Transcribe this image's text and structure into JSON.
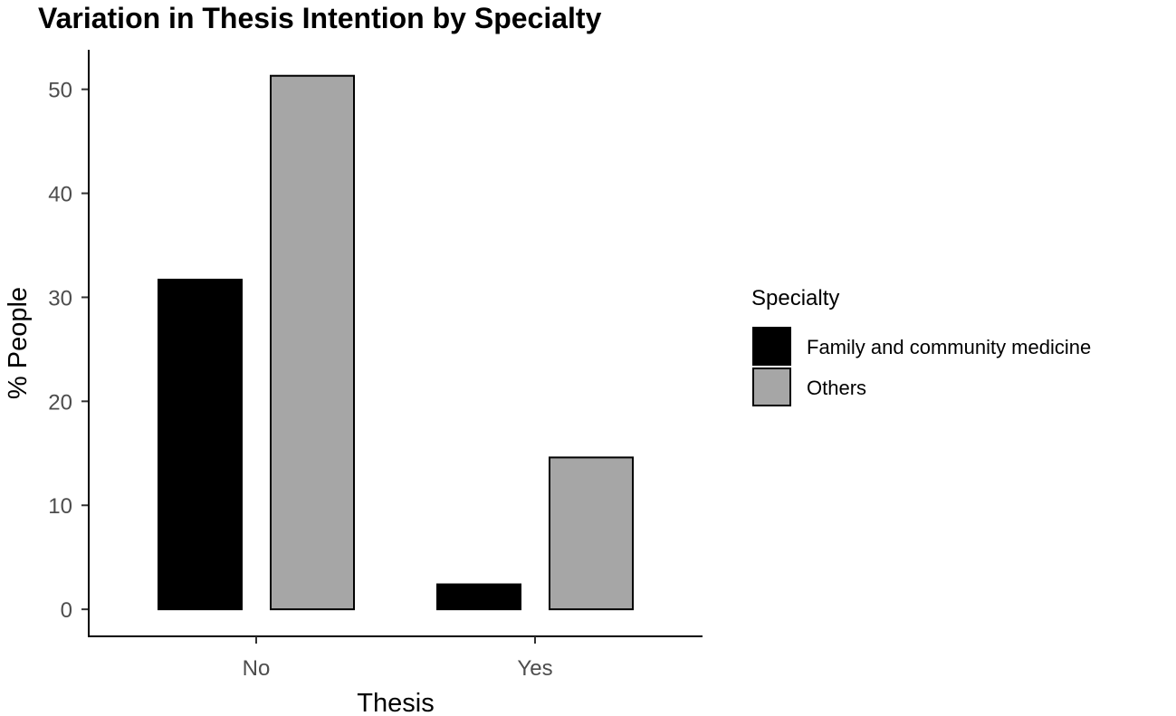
{
  "chart_data": {
    "type": "bar",
    "title": "Variation in Thesis Intention by Specialty",
    "xlabel": "Thesis",
    "ylabel": "% People",
    "categories": [
      "No",
      "Yes"
    ],
    "series": [
      {
        "name": "Family and community medicine",
        "values": [
          31.7,
          2.4
        ],
        "color": "#000000"
      },
      {
        "name": "Others",
        "values": [
          51.3,
          14.6
        ],
        "color": "#a6a6a6"
      }
    ],
    "yticks": [
      0,
      10,
      20,
      30,
      40,
      50
    ],
    "ylim": [
      -2.6,
      53.8
    ],
    "legend": {
      "title": "Specialty",
      "position": "right"
    },
    "grid": false
  }
}
